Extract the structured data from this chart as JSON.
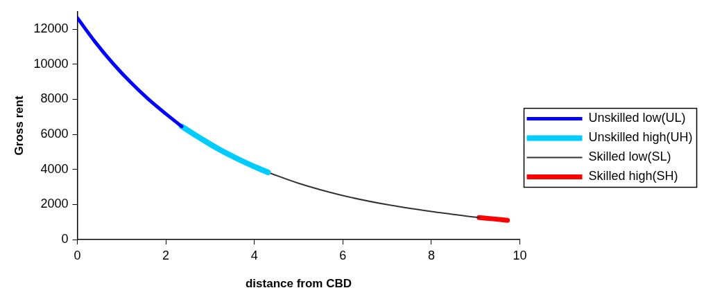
{
  "chart_data": {
    "type": "line",
    "xlabel": "distance from CBD",
    "ylabel": "Gross rent",
    "xlim": [
      0,
      10
    ],
    "xticks": [
      0,
      2,
      4,
      6,
      8,
      10
    ],
    "ylim": [
      0,
      13000
    ],
    "yticks": [
      0,
      2000,
      4000,
      6000,
      8000,
      10000,
      12000
    ],
    "grid": false,
    "legend": "right",
    "marker": "none",
    "line_style": "solid",
    "series": [
      {
        "name": "Unskilled low(UL)",
        "color": "#0000ff",
        "x": [
          0,
          0.4,
          0.8,
          1.2,
          1.6,
          2.0,
          2.36
        ],
        "values": [
          12650,
          11280,
          10060,
          8980,
          8020,
          7170,
          6450
        ]
      },
      {
        "name": "Unskilled high(UH)",
        "color": "#00ccff",
        "x": [
          2.36,
          2.8,
          3.2,
          3.6,
          4.0,
          4.31
        ],
        "values": [
          6450,
          5750,
          5150,
          4630,
          4160,
          3830
        ]
      },
      {
        "name": "Skilled low(SL)",
        "color": "#333333",
        "x": [
          4.31,
          5,
          6,
          7,
          8,
          9.08
        ],
        "values": [
          3830,
          3210,
          2510,
          1990,
          1600,
          1250
        ]
      },
      {
        "name": "Skilled high(SH)",
        "color": "#ff0000",
        "x": [
          9.08,
          9.4,
          9.72
        ],
        "values": [
          1250,
          1180,
          1100
        ]
      }
    ]
  }
}
